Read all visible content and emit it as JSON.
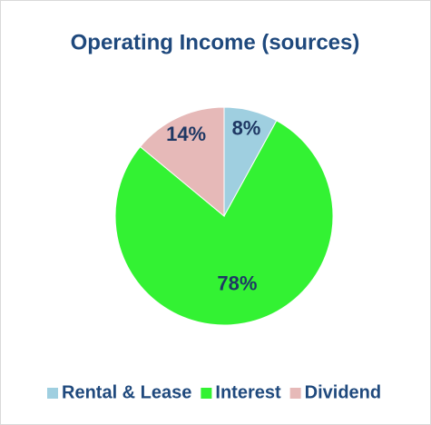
{
  "chart_data": {
    "type": "pie",
    "title": "Operating Income (sources)",
    "categories": [
      "Rental & Lease",
      "Interest",
      "Dividend"
    ],
    "values": [
      8,
      78,
      14
    ],
    "value_labels": [
      "8%",
      "78%",
      "14%"
    ],
    "colors": [
      "#9fcfe0",
      "#33f233",
      "#e6b9b8"
    ],
    "legend": "bottom"
  }
}
